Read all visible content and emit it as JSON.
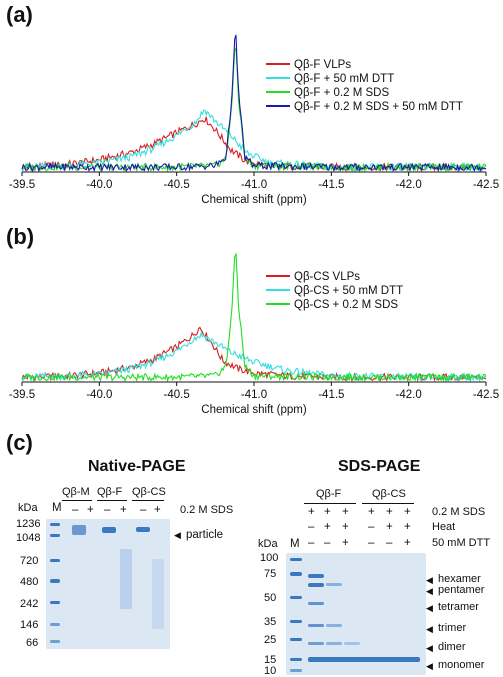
{
  "panels": {
    "a_label": "(a)",
    "b_label": "(b)",
    "c_label": "(c)"
  },
  "chart_data": [
    {
      "type": "line",
      "panel": "(a)",
      "xlabel": "Chemical shift (ppm)",
      "x_ticks": [
        "-39.5",
        "-40.0",
        "-40.5",
        "-41.0",
        "-41.5",
        "-42.0",
        "-42.5"
      ],
      "xlim": [
        -39.5,
        -42.5
      ],
      "grid": false,
      "legend_position": "top-right",
      "series": [
        {
          "name": "Qβ-F VLPs",
          "color": "#d42020",
          "x": [
            -39.5,
            -39.8,
            -40.0,
            -40.2,
            -40.35,
            -40.5,
            -40.62,
            -40.68,
            -40.75,
            -40.85,
            -40.95,
            -41.1,
            -41.5,
            -42.0,
            -42.5
          ],
          "y": [
            0.02,
            0.04,
            0.07,
            0.12,
            0.18,
            0.26,
            0.32,
            0.36,
            0.28,
            0.14,
            0.06,
            0.03,
            0.02,
            0.02,
            0.02
          ]
        },
        {
          "name": "Qβ-F + 50 mM DTT",
          "color": "#33dede",
          "x": [
            -39.5,
            -39.8,
            -40.0,
            -40.2,
            -40.35,
            -40.5,
            -40.62,
            -40.68,
            -40.75,
            -40.85,
            -40.95,
            -41.1,
            -41.5,
            -42.0,
            -42.5
          ],
          "y": [
            0.02,
            0.03,
            0.05,
            0.09,
            0.15,
            0.24,
            0.33,
            0.42,
            0.34,
            0.24,
            0.12,
            0.05,
            0.02,
            0.02,
            0.02
          ]
        },
        {
          "name": "Qβ-F + 0.2 M SDS",
          "color": "#22dd22",
          "x": [
            -39.5,
            -40.0,
            -40.5,
            -40.75,
            -40.82,
            -40.86,
            -40.88,
            -40.9,
            -40.94,
            -41.0,
            -41.5,
            -42.0,
            -42.5
          ],
          "y": [
            0.02,
            0.02,
            0.02,
            0.03,
            0.08,
            0.5,
            0.93,
            0.5,
            0.08,
            0.03,
            0.02,
            0.02,
            0.02
          ]
        },
        {
          "name": "Qβ-F + 0.2 M SDS + 50 mM DTT",
          "color": "#1a1aa8",
          "x": [
            -39.5,
            -40.0,
            -40.5,
            -40.75,
            -40.82,
            -40.86,
            -40.88,
            -40.9,
            -40.94,
            -41.0,
            -41.5,
            -42.0,
            -42.5
          ],
          "y": [
            0.02,
            0.02,
            0.02,
            0.03,
            0.09,
            0.55,
            1.0,
            0.55,
            0.09,
            0.03,
            0.02,
            0.02,
            0.02
          ]
        }
      ]
    },
    {
      "type": "line",
      "panel": "(b)",
      "xlabel": "Chemical shift (ppm)",
      "x_ticks": [
        "-39.5",
        "-40.0",
        "-40.5",
        "-41.0",
        "-41.5",
        "-42.0",
        "-42.5"
      ],
      "xlim": [
        -39.5,
        -42.5
      ],
      "grid": false,
      "legend_position": "top-right",
      "series": [
        {
          "name": "Qβ-CS VLPs",
          "color": "#d42020",
          "x": [
            -39.5,
            -39.8,
            -40.0,
            -40.2,
            -40.35,
            -40.5,
            -40.6,
            -40.65,
            -40.72,
            -40.8,
            -40.9,
            -41.0,
            -41.2,
            -41.5,
            -42.0,
            -42.5
          ],
          "y": [
            0.02,
            0.03,
            0.05,
            0.09,
            0.15,
            0.24,
            0.32,
            0.38,
            0.28,
            0.14,
            0.08,
            0.05,
            0.03,
            0.02,
            0.02,
            0.02
          ]
        },
        {
          "name": "Qβ-CS + 50 mM DTT",
          "color": "#33dede",
          "x": [
            -39.5,
            -39.8,
            -40.0,
            -40.2,
            -40.35,
            -40.5,
            -40.6,
            -40.66,
            -40.75,
            -40.85,
            -41.0,
            -41.2,
            -41.5,
            -42.0,
            -42.5
          ],
          "y": [
            0.02,
            0.03,
            0.04,
            0.08,
            0.13,
            0.21,
            0.29,
            0.33,
            0.27,
            0.2,
            0.13,
            0.07,
            0.03,
            0.02,
            0.02
          ]
        },
        {
          "name": "Qβ-CS + 0.2 M SDS",
          "color": "#22dd22",
          "x": [
            -39.5,
            -40.0,
            -40.5,
            -40.75,
            -40.82,
            -40.86,
            -40.88,
            -40.9,
            -40.94,
            -41.0,
            -41.5,
            -42.0,
            -42.5
          ],
          "y": [
            0.02,
            0.02,
            0.02,
            0.03,
            0.1,
            0.55,
            1.0,
            0.55,
            0.1,
            0.03,
            0.02,
            0.02,
            0.02
          ]
        }
      ]
    }
  ],
  "native_page": {
    "title": "Native-PAGE",
    "kda": "kDa",
    "marker": "M",
    "groups": [
      "Qβ-M",
      "Qβ-F",
      "Qβ-CS"
    ],
    "lane_signs": [
      "–",
      "+",
      "–",
      "+",
      "–",
      "+"
    ],
    "condition": "0.2 M SDS",
    "ladder": [
      "1236",
      "1048",
      "720",
      "480",
      "242",
      "146",
      "66"
    ],
    "arrow_label": "particle"
  },
  "sds_page": {
    "title": "SDS-PAGE",
    "kda": "kDa",
    "marker": "M",
    "groups": [
      "Qβ-F",
      "Qβ-CS"
    ],
    "conditions": [
      "0.2 M SDS",
      "Heat",
      "50 mM DTT"
    ],
    "rows": [
      [
        "+",
        "+",
        "+",
        "+",
        "+",
        "+"
      ],
      [
        "–",
        "+",
        "+",
        "–",
        "+",
        "+"
      ],
      [
        "–",
        "–",
        "+",
        "–",
        "–",
        "+"
      ]
    ],
    "ladder": [
      "100",
      "75",
      "50",
      "35",
      "25",
      "15",
      "10"
    ],
    "species": [
      "hexamer",
      "pentamer",
      "tetramer",
      "trimer",
      "dimer",
      "monomer"
    ]
  },
  "colors": {
    "gel_bg": "#dbe7f2",
    "band": "#3b78c2"
  }
}
